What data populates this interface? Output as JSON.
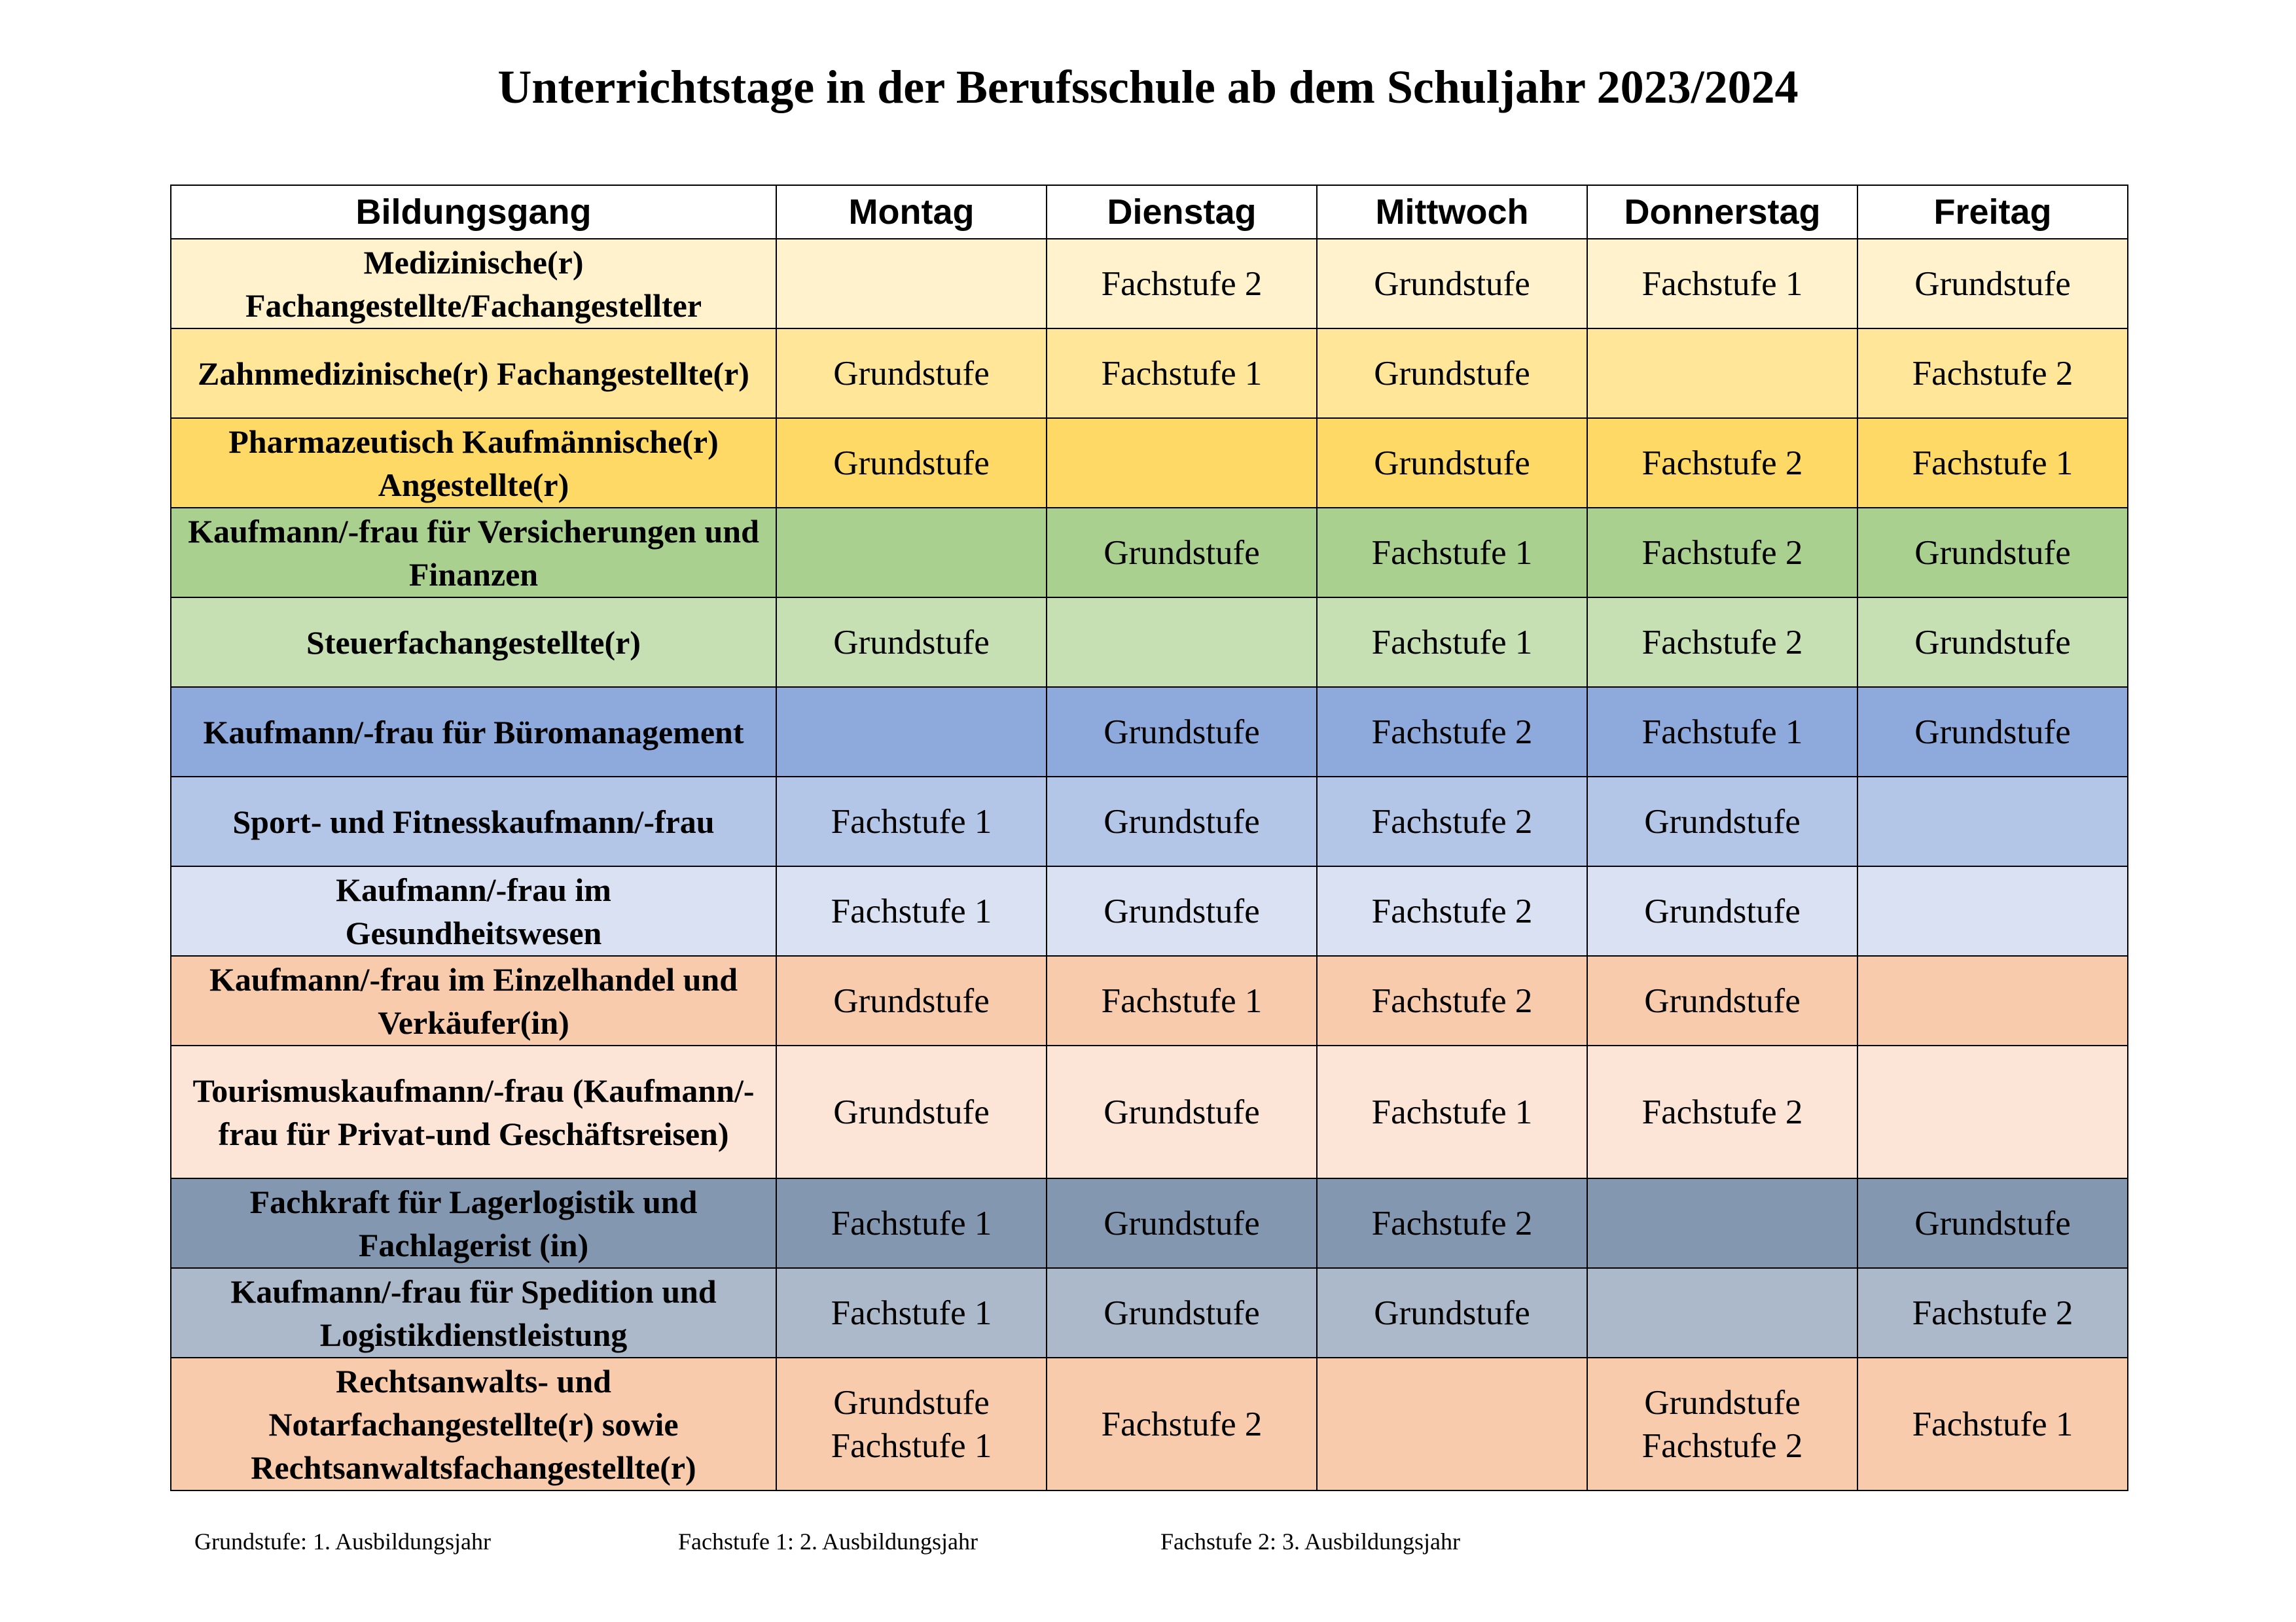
{
  "title": "Unterrichtstage in der Berufsschule ab dem Schuljahr 2023/2024",
  "headers": [
    "Bildungsgang",
    "Montag",
    "Dienstag",
    "Mittwoch",
    "Donnerstag",
    "Freitag"
  ],
  "rows": [
    {
      "name": "Medizinische(r) Fachangestellte/Fachangestellter",
      "bg": "#FFF2CC",
      "cells": [
        "",
        "Fachstufe 2",
        "Grundstufe",
        "Fachstufe 1",
        "Grundstufe"
      ]
    },
    {
      "name": "Zahnmedizinische(r) Fachangestellte(r)",
      "bg": "#FFE699",
      "cells": [
        "Grundstufe",
        "Fachstufe 1",
        "Grundstufe",
        "",
        "Fachstufe 2"
      ]
    },
    {
      "name": "Pharmazeutisch Kaufmännische(r) Angestellte(r)",
      "bg": "#FFD966",
      "cells": [
        "Grundstufe",
        "",
        "Grundstufe",
        "Fachstufe 2",
        "Fachstufe 1"
      ]
    },
    {
      "name": "Kaufmann/-frau für Versicherungen und Finanzen",
      "bg": "#A9D08E",
      "cells": [
        "",
        "Grundstufe",
        "Fachstufe 1",
        "Fachstufe 2",
        "Grundstufe"
      ]
    },
    {
      "name": "Steuerfachangestellte(r)",
      "bg": "#C6E0B4",
      "cells": [
        "Grundstufe",
        "",
        "Fachstufe 1",
        "Fachstufe 2",
        "Grundstufe"
      ]
    },
    {
      "name": "Kaufmann/-frau für Büromanagement",
      "bg": "#8EA9DB",
      "cells": [
        "",
        "Grundstufe",
        "Fachstufe 2",
        "Fachstufe 1",
        "Grundstufe"
      ]
    },
    {
      "name": "Sport- und Fitnesskaufmann/-frau",
      "bg": "#B4C6E7",
      "cells": [
        "Fachstufe 1",
        "Grundstufe",
        "Fachstufe 2",
        "Grundstufe",
        ""
      ]
    },
    {
      "name": "Kaufmann/-frau im Gesundheitswesen",
      "bg": "#D9E1F2",
      "cells": [
        "Fachstufe 1",
        "Grundstufe",
        "Fachstufe 2",
        "Grundstufe",
        ""
      ]
    },
    {
      "name": "Kaufmann/-frau im Einzelhandel und Verkäufer(in)",
      "bg": "#F8CBAD",
      "cells": [
        "Grundstufe",
        "Fachstufe 1",
        "Fachstufe 2",
        "Grundstufe",
        ""
      ]
    },
    {
      "name": "Tourismuskaufmann/-frau (Kaufmann/-frau für Privat-und Geschäftsreisen)",
      "bg": "#FCE4D6",
      "cells": [
        "Grundstufe",
        "Grundstufe",
        "Fachstufe 1",
        "Fachstufe 2",
        ""
      ]
    },
    {
      "name": "Fachkraft für Lagerlogistik und Fachlagerist (in)",
      "bg": "#8497B0",
      "cells": [
        "Fachstufe 1",
        "Grundstufe",
        "Fachstufe 2",
        "",
        "Grundstufe"
      ]
    },
    {
      "name": "Kaufmann/-frau für Spedition und Logistikdienstleistung",
      "bg": "#ACB9CA",
      "cells": [
        "Fachstufe 1",
        "Grundstufe",
        "Grundstufe",
        "",
        "Fachstufe 2"
      ]
    },
    {
      "name": "Rechtsanwalts- und Notarfachangestellte(r) sowie Rechtsanwaltsfachangestellte(r)",
      "bg": "#F8CBAD",
      "cells": [
        "Grundstufe\nFachstufe 1",
        "Fachstufe 2",
        "",
        "Grundstufe\nFachstufe 2",
        "Fachstufe 1"
      ]
    }
  ],
  "legend": [
    "Grundstufe: 1. Ausbildungsjahr",
    "Fachstufe 1: 2. Ausbildungsjahr",
    "Fachstufe 2: 3. Ausbildungsjahr"
  ]
}
